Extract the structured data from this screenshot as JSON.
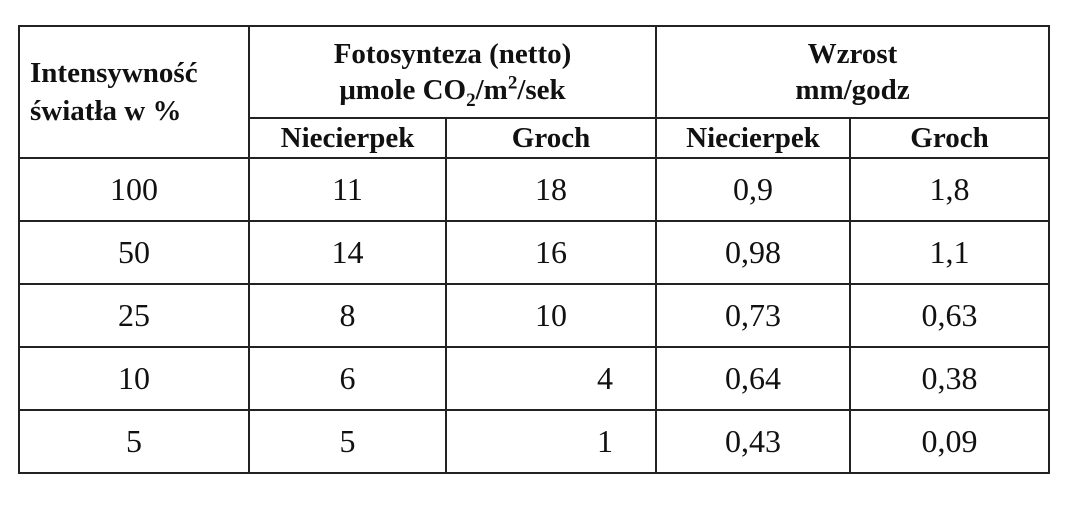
{
  "table": {
    "corner": {
      "line1": "Intensywność",
      "line2": "światła w %"
    },
    "photosynthesis": {
      "line1": "Fotosynteza (netto)",
      "unit_a": "μmole CO",
      "sub": "2",
      "unit_b": "/m",
      "sup": "2",
      "unit_c": "/sek"
    },
    "growth": {
      "line1": "Wzrost",
      "line2": "mm/godz"
    },
    "subheaders": [
      "Niecierpek",
      "Groch",
      "Niecierpek",
      "Groch"
    ],
    "rows": [
      [
        "100",
        "11",
        "18",
        "0,9",
        "1,8"
      ],
      [
        "50",
        "14",
        "16",
        "0,98",
        "1,1"
      ],
      [
        "25",
        "8",
        "10",
        "0,73",
        "0,63"
      ],
      [
        "10",
        "6",
        "4",
        "0,64",
        "0,38"
      ],
      [
        "5",
        "5",
        "1",
        "0,43",
        "0,09"
      ]
    ]
  }
}
